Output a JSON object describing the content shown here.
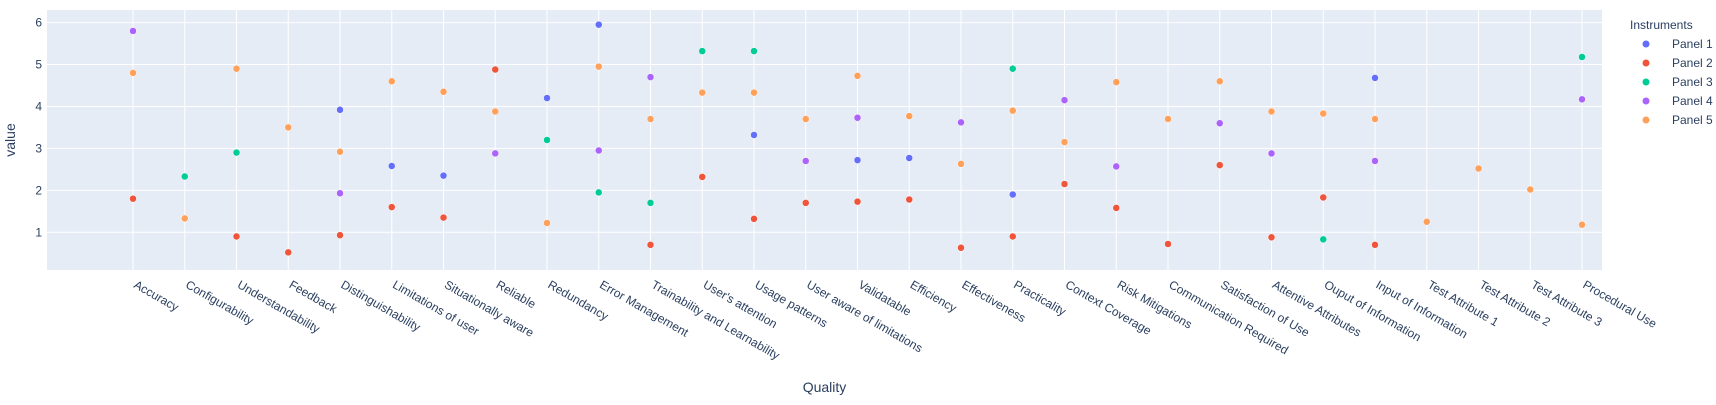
{
  "chart_data": {
    "type": "scatter",
    "xlabel": "Quality",
    "ylabel": "value",
    "ylim": [
      0.1,
      6.3
    ],
    "yticks": [
      1,
      2,
      3,
      4,
      5,
      6
    ],
    "grid": true,
    "legend_title": "Instruments",
    "legend_position": "top-right",
    "categories": [
      "Accuracy",
      "Configurability",
      "Understandability",
      "Feedback",
      "Distinguishability",
      "Limitations of user",
      "Situationally aware",
      "Reliable",
      "Redundancy",
      "Error Management",
      "Trainability and Learnability",
      "User's attention",
      "Usage patterns",
      "User aware of limitations",
      "Validatable",
      "Efficiency",
      "Effectiveness",
      "Practicality",
      "Context Coverage",
      "Risk Mitigations",
      "Communication Required",
      "Satisfaction of Use",
      "Attentive Attributes",
      "Ouput of Information",
      "Input of Information",
      "Test Attribute 1",
      "Test Attribute 2",
      "Test Attribute 3",
      "Procedural Use"
    ],
    "series": [
      {
        "name": "Panel 1",
        "color": "#636efa",
        "values": [
          null,
          null,
          null,
          null,
          3.92,
          2.58,
          2.35,
          null,
          4.2,
          5.95,
          null,
          null,
          3.32,
          null,
          2.72,
          2.77,
          null,
          1.9,
          null,
          null,
          null,
          null,
          null,
          null,
          4.68,
          null,
          null,
          null,
          null
        ]
      },
      {
        "name": "Panel 2",
        "color": "#ef553b",
        "values": [
          1.8,
          null,
          0.9,
          0.52,
          0.93,
          1.6,
          1.35,
          4.88,
          null,
          null,
          0.7,
          2.32,
          1.32,
          1.7,
          1.73,
          1.78,
          0.63,
          0.9,
          2.15,
          1.58,
          0.72,
          2.6,
          0.88,
          1.83,
          0.7,
          null,
          null,
          null,
          null
        ]
      },
      {
        "name": "Panel 3",
        "color": "#00cc96",
        "values": [
          null,
          2.33,
          2.9,
          null,
          null,
          null,
          null,
          null,
          3.2,
          1.95,
          1.7,
          5.32,
          5.32,
          null,
          null,
          null,
          null,
          4.9,
          null,
          null,
          null,
          null,
          null,
          0.83,
          null,
          null,
          null,
          null,
          5.18
        ]
      },
      {
        "name": "Panel 4",
        "color": "#ab63fa",
        "values": [
          5.8,
          null,
          null,
          null,
          1.93,
          null,
          null,
          2.88,
          null,
          2.95,
          4.7,
          null,
          null,
          2.7,
          3.73,
          null,
          3.62,
          null,
          4.15,
          2.57,
          null,
          3.6,
          2.88,
          null,
          2.7,
          null,
          null,
          null,
          4.17
        ]
      },
      {
        "name": "Panel 5",
        "color": "#ffa15a",
        "values": [
          4.8,
          1.33,
          4.9,
          3.5,
          2.92,
          4.6,
          4.35,
          3.88,
          1.22,
          4.95,
          3.7,
          4.33,
          4.33,
          3.7,
          4.73,
          3.77,
          2.63,
          3.9,
          3.15,
          4.58,
          3.7,
          4.6,
          3.88,
          3.83,
          3.7,
          1.25,
          2.52,
          2.02,
          1.18
        ]
      }
    ]
  }
}
